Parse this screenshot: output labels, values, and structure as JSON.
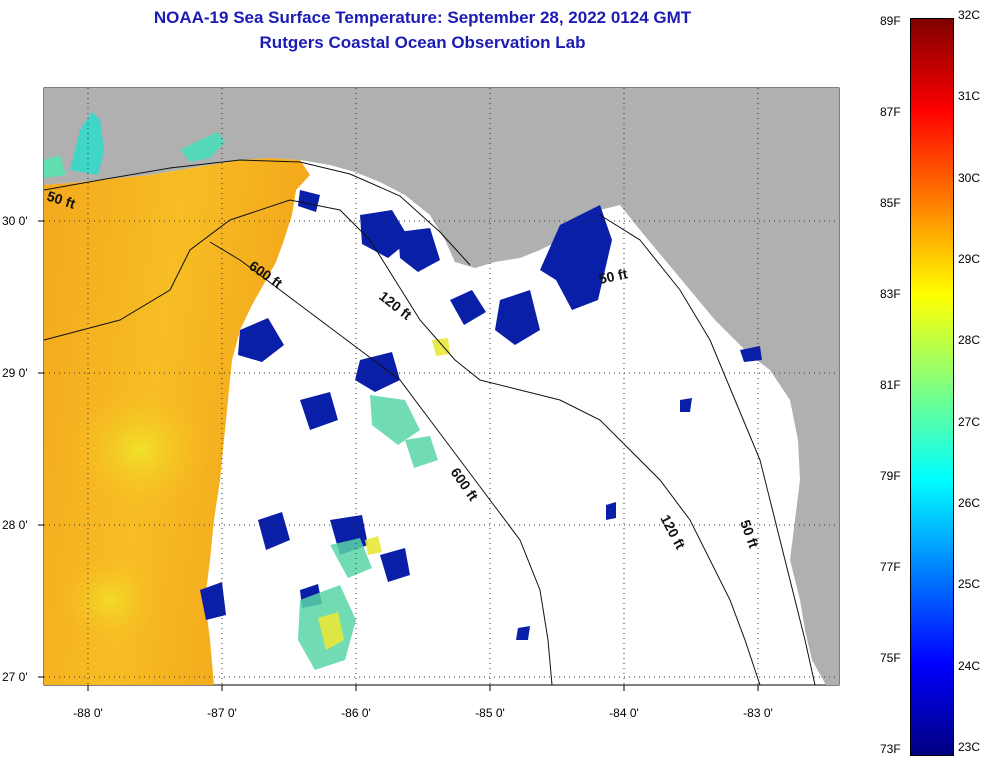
{
  "title": {
    "line1": "NOAA-19 Sea Surface Temperature:  September 28, 2022 0124 GMT",
    "line2": "Rutgers Coastal Ocean Observation Lab"
  },
  "map": {
    "lon_ticks": [
      "-88 0'",
      "-87 0'",
      "-86 0'",
      "-85 0'",
      "-84 0'",
      "-83 0'"
    ],
    "lat_ticks": [
      "30 0'",
      "29 0'",
      "28 0'",
      "27 0'"
    ],
    "contour_labels": [
      "50 ft",
      "600 ft",
      "120 ft",
      "600 ft",
      "50 ft",
      "120 ft",
      "50 ft"
    ],
    "colors": {
      "land": "#b0b0b0",
      "cloud": "#ffffff",
      "warm_water": "#f6b21e",
      "cool_water": "#0a1fa8"
    }
  },
  "colorbar": {
    "fahrenheit": [
      "89F",
      "87F",
      "85F",
      "83F",
      "81F",
      "79F",
      "77F",
      "75F",
      "73F"
    ],
    "celsius": [
      "32C",
      "31C",
      "30C",
      "29C",
      "28C",
      "27C",
      "26C",
      "25C",
      "24C",
      "23C"
    ],
    "colors": [
      "#800000",
      "#ff0000",
      "#ff8000",
      "#ffff00",
      "#80ff80",
      "#00ffff",
      "#0080ff",
      "#0000ff",
      "#000080"
    ]
  }
}
